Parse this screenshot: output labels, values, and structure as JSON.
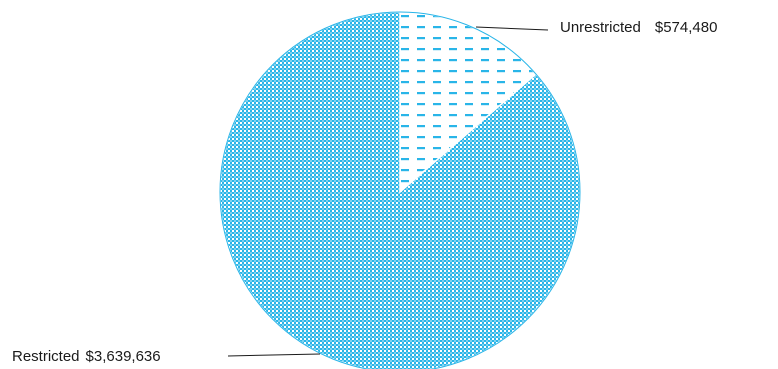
{
  "chart_data": {
    "type": "pie",
    "title": "",
    "slices": [
      {
        "label": "Unrestricted",
        "value": 574480,
        "value_text": "$574,480",
        "color": "#29b5e8",
        "pattern": "dashes"
      },
      {
        "label": "Restricted",
        "value": 3639636,
        "value_text": "$3,639,636",
        "color": "#29b5e8",
        "pattern": "checker"
      }
    ],
    "legend": "none",
    "data_labels": "outside-with-leader-lines"
  }
}
